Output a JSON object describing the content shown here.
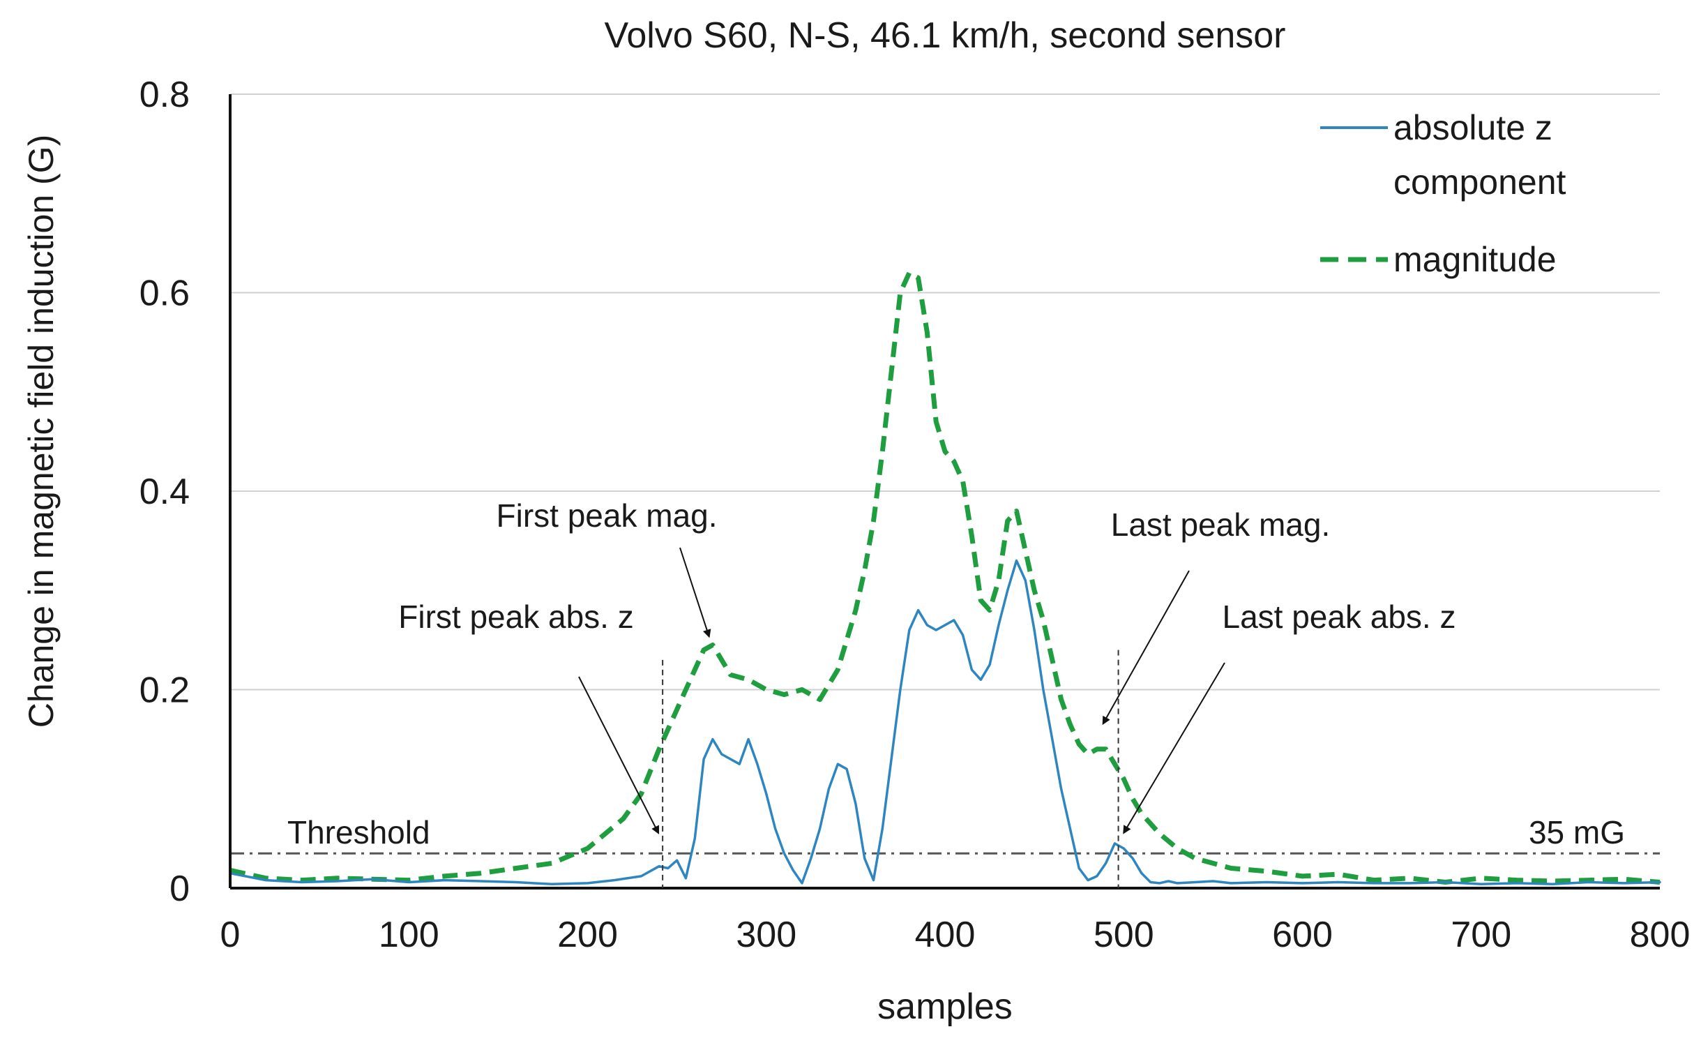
{
  "chart_data": {
    "type": "line",
    "title": "Volvo S60, N-S, 46.1 km/h, second sensor",
    "xlabel": "samples",
    "ylabel": "Change in magnetic field induction  (G)",
    "xlim": [
      0,
      800
    ],
    "ylim": [
      0,
      0.8
    ],
    "x_ticks": [
      0,
      100,
      200,
      300,
      400,
      500,
      600,
      700,
      800
    ],
    "y_ticks": [
      0,
      0.2,
      0.4,
      0.6,
      0.8
    ],
    "x_tick_labels": [
      "0",
      "100",
      "200",
      "300",
      "400",
      "500",
      "600",
      "700",
      "800"
    ],
    "y_tick_labels": [
      "0",
      "0.2",
      "0.4",
      "0.6",
      "0.8"
    ],
    "grid": "horizontal",
    "legend_position": "top-right",
    "series": [
      {
        "name_lines": [
          "absolute z",
          "component"
        ],
        "color": "#2e86c1",
        "style": "solid",
        "x": [
          0,
          20,
          40,
          60,
          80,
          100,
          120,
          140,
          160,
          180,
          200,
          215,
          230,
          240,
          245,
          250,
          255,
          260,
          265,
          270,
          275,
          280,
          285,
          290,
          295,
          300,
          305,
          310,
          315,
          320,
          325,
          330,
          335,
          340,
          345,
          350,
          355,
          360,
          365,
          370,
          375,
          380,
          385,
          390,
          395,
          400,
          405,
          410,
          415,
          420,
          425,
          430,
          435,
          440,
          445,
          450,
          455,
          460,
          465,
          470,
          475,
          480,
          485,
          490,
          495,
          500,
          505,
          510,
          515,
          520,
          525,
          530,
          540,
          550,
          560,
          580,
          600,
          620,
          640,
          660,
          680,
          700,
          720,
          740,
          760,
          780,
          800
        ],
        "values": [
          0.015,
          0.008,
          0.006,
          0.007,
          0.009,
          0.006,
          0.008,
          0.007,
          0.006,
          0.004,
          0.005,
          0.008,
          0.012,
          0.022,
          0.02,
          0.028,
          0.01,
          0.05,
          0.13,
          0.15,
          0.135,
          0.13,
          0.125,
          0.15,
          0.125,
          0.095,
          0.06,
          0.035,
          0.018,
          0.005,
          0.03,
          0.06,
          0.1,
          0.125,
          0.12,
          0.085,
          0.03,
          0.008,
          0.06,
          0.13,
          0.2,
          0.26,
          0.28,
          0.265,
          0.26,
          0.265,
          0.27,
          0.255,
          0.22,
          0.21,
          0.225,
          0.265,
          0.3,
          0.33,
          0.31,
          0.26,
          0.2,
          0.15,
          0.1,
          0.06,
          0.02,
          0.008,
          0.012,
          0.025,
          0.045,
          0.04,
          0.03,
          0.015,
          0.006,
          0.005,
          0.007,
          0.005,
          0.006,
          0.007,
          0.005,
          0.006,
          0.005,
          0.006,
          0.005,
          0.005,
          0.006,
          0.004,
          0.005,
          0.004,
          0.006,
          0.005,
          0.006
        ]
      },
      {
        "name": "magnitude",
        "color": "#1e9e3e",
        "style": "dashed",
        "x": [
          0,
          20,
          40,
          60,
          80,
          100,
          120,
          140,
          160,
          180,
          200,
          210,
          220,
          230,
          240,
          250,
          255,
          260,
          265,
          270,
          275,
          280,
          290,
          300,
          310,
          320,
          330,
          340,
          350,
          355,
          360,
          365,
          370,
          375,
          380,
          385,
          390,
          395,
          400,
          405,
          410,
          415,
          420,
          425,
          430,
          435,
          440,
          445,
          450,
          455,
          460,
          465,
          470,
          475,
          480,
          485,
          490,
          495,
          500,
          505,
          510,
          520,
          530,
          540,
          550,
          560,
          580,
          600,
          620,
          640,
          660,
          680,
          700,
          720,
          740,
          760,
          780,
          800
        ],
        "values": [
          0.018,
          0.01,
          0.008,
          0.01,
          0.009,
          0.008,
          0.012,
          0.015,
          0.02,
          0.025,
          0.04,
          0.055,
          0.07,
          0.095,
          0.14,
          0.18,
          0.2,
          0.22,
          0.24,
          0.245,
          0.23,
          0.215,
          0.21,
          0.2,
          0.195,
          0.2,
          0.19,
          0.22,
          0.28,
          0.32,
          0.37,
          0.44,
          0.52,
          0.6,
          0.62,
          0.615,
          0.56,
          0.47,
          0.44,
          0.43,
          0.41,
          0.355,
          0.29,
          0.28,
          0.31,
          0.37,
          0.38,
          0.34,
          0.3,
          0.27,
          0.23,
          0.19,
          0.165,
          0.145,
          0.135,
          0.14,
          0.14,
          0.125,
          0.11,
          0.09,
          0.075,
          0.055,
          0.04,
          0.03,
          0.025,
          0.02,
          0.017,
          0.012,
          0.014,
          0.008,
          0.01,
          0.006,
          0.01,
          0.008,
          0.007,
          0.008,
          0.009,
          0.006
        ]
      }
    ],
    "threshold": {
      "value": 0.035,
      "label_left": "Threshold",
      "label_right": "35 mG"
    },
    "vertical_markers": [
      {
        "x": 242,
        "y_top": 0.23
      },
      {
        "x": 497,
        "y_top": 0.24
      }
    ],
    "annotations": [
      {
        "text": "First peak mag.",
        "point": [
          268,
          0.245
        ]
      },
      {
        "text": "First peak abs. z",
        "point": [
          242,
          0.047
        ]
      },
      {
        "text": "Last peak mag.",
        "point": [
          490,
          0.16
        ]
      },
      {
        "text": "Last peak abs. z",
        "point": [
          500,
          0.05
        ]
      }
    ]
  }
}
